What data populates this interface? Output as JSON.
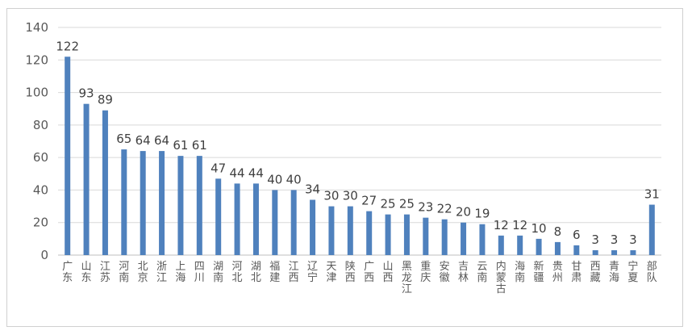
{
  "chart_data": {
    "type": "bar",
    "title": "",
    "xlabel": "",
    "ylabel": "",
    "ylim": [
      0,
      140
    ],
    "yticks": [
      0,
      20,
      40,
      60,
      80,
      100,
      120,
      140
    ],
    "grid": true,
    "legend": "none",
    "bar_color": "#4f81bd",
    "categories": [
      "广东",
      "山东",
      "江苏",
      "河南",
      "北京",
      "浙江",
      "上海",
      "四川",
      "湖南",
      "河北",
      "湖北",
      "福建",
      "江西",
      "辽宁",
      "天津",
      "陕西",
      "广西",
      "山西",
      "黑龙江",
      "重庆",
      "安徽",
      "吉林",
      "云南",
      "内蒙古",
      "海南",
      "新疆",
      "贵州",
      "甘肃",
      "西藏",
      "青海",
      "宁夏",
      "部队"
    ],
    "values": [
      122,
      93,
      89,
      65,
      64,
      64,
      61,
      61,
      47,
      44,
      44,
      40,
      40,
      34,
      30,
      30,
      27,
      25,
      25,
      23,
      22,
      20,
      19,
      12,
      12,
      10,
      8,
      6,
      3,
      3,
      3,
      31
    ]
  }
}
